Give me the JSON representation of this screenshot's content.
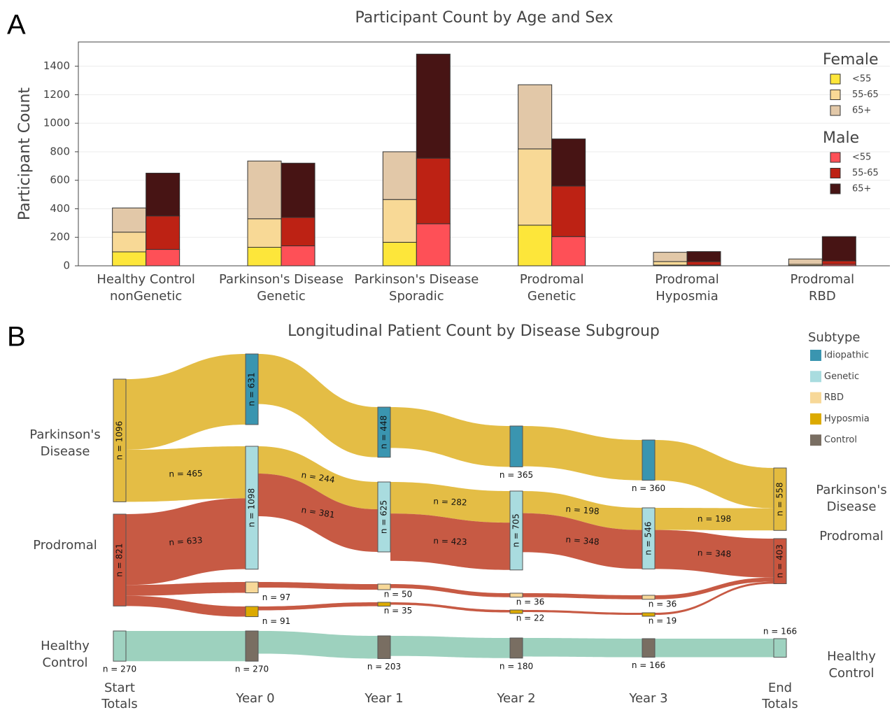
{
  "chart_data": [
    {
      "type": "bar",
      "panel": "A",
      "title": "Participant Count by Age and Sex",
      "ylabel": "Participant Count",
      "categories": [
        [
          "Healthy Control",
          "nonGenetic"
        ],
        [
          "Parkinson's Disease",
          "Genetic"
        ],
        [
          "Parkinson's Disease",
          "Sporadic"
        ],
        [
          "Prodromal",
          "Genetic"
        ],
        [
          "Prodromal",
          "Hyposmia"
        ],
        [
          "Prodromal",
          "RBD"
        ]
      ],
      "stacks": [
        {
          "name": "Female",
          "series": [
            {
              "name": "<55",
              "color": "#fde63a",
              "values": [
                98,
                130,
                165,
                285,
                5,
                2
              ]
            },
            {
              "name": "55-65",
              "color": "#f8d996",
              "values": [
                138,
                200,
                300,
                535,
                25,
                8
              ]
            },
            {
              "name": "65+",
              "color": "#e2c8a8",
              "values": [
                170,
                405,
                335,
                450,
                65,
                38
              ]
            }
          ]
        },
        {
          "name": "Male",
          "series": [
            {
              "name": "<55",
              "color": "#fe5057",
              "values": [
                115,
                140,
                295,
                205,
                5,
                10
              ]
            },
            {
              "name": "55-65",
              "color": "#bd2214",
              "values": [
                235,
                200,
                460,
                355,
                25,
                25
              ]
            },
            {
              "name": "65+",
              "color": "#471414",
              "values": [
                300,
                380,
                730,
                330,
                70,
                170
              ]
            }
          ]
        }
      ],
      "ylim": [
        0,
        1570
      ],
      "yticks": [
        0,
        200,
        400,
        600,
        800,
        1000,
        1200,
        1400
      ],
      "grid": true
    },
    {
      "type": "sankey",
      "panel": "B",
      "title": "Longitudinal Patient Count by Disease Subgroup",
      "columns": [
        [
          "Start",
          "Totals"
        ],
        [
          "Year 0"
        ],
        [
          "Year 1"
        ],
        [
          "Year 2"
        ],
        [
          "Year 3"
        ],
        [
          "End",
          "Totals"
        ]
      ],
      "legend": {
        "title": "Subtype",
        "items": [
          {
            "name": "Idiopathic",
            "color": "#3a95b0"
          },
          {
            "name": "Genetic",
            "color": "#a9dcdf"
          },
          {
            "name": "RBD",
            "color": "#f7d898"
          },
          {
            "name": "Hyposmia",
            "color": "#dcaa00"
          },
          {
            "name": "Control",
            "color": "#796e62"
          }
        ]
      },
      "nodes": [
        {
          "column": 0,
          "name": [
            "Parkinson's",
            "Disease"
          ],
          "value": 1096,
          "label": "n = 1096",
          "color": "#e3bb3f"
        },
        {
          "column": 0,
          "name": [
            "Prodromal"
          ],
          "value": 821,
          "label": "n = 821",
          "color": "#c9553e"
        },
        {
          "column": 0,
          "name": [
            "Healthy",
            "Control"
          ],
          "value": 270,
          "label": "n = 270",
          "color": "#9ed2c0"
        },
        {
          "column": 1,
          "value": 631,
          "label": "n = 631",
          "color": "#3a95b0"
        },
        {
          "column": 1,
          "value": 1098,
          "label": "n = 1098",
          "color": "#a9dcdf"
        },
        {
          "column": 1,
          "value": 97,
          "label": "n = 97",
          "color": "#f7d898"
        },
        {
          "column": 1,
          "value": 91,
          "label": "n = 91",
          "color": "#dcaa00"
        },
        {
          "column": 1,
          "value": 270,
          "label": "n = 270",
          "color": "#796e62"
        },
        {
          "column": 2,
          "value": 448,
          "label": "n = 448",
          "color": "#3a95b0"
        },
        {
          "column": 2,
          "value": 625,
          "label": "n = 625",
          "color": "#a9dcdf"
        },
        {
          "column": 2,
          "value": 50,
          "label": "n = 50",
          "color": "#f7d898"
        },
        {
          "column": 2,
          "value": 35,
          "label": "n = 35",
          "color": "#dcaa00"
        },
        {
          "column": 2,
          "value": 203,
          "label": "n = 203",
          "color": "#796e62"
        },
        {
          "column": 3,
          "value": 365,
          "label": "n = 365",
          "color": "#3a95b0"
        },
        {
          "column": 3,
          "value": 705,
          "label": "n = 705",
          "color": "#a9dcdf"
        },
        {
          "column": 3,
          "value": 36,
          "label": "n = 36",
          "color": "#f7d898"
        },
        {
          "column": 3,
          "value": 22,
          "label": "n = 22",
          "color": "#dcaa00"
        },
        {
          "column": 3,
          "value": 180,
          "label": "n = 180",
          "color": "#796e62"
        },
        {
          "column": 4,
          "value": 360,
          "label": "n = 360",
          "color": "#3a95b0"
        },
        {
          "column": 4,
          "value": 546,
          "label": "n = 546",
          "color": "#a9dcdf"
        },
        {
          "column": 4,
          "value": 36,
          "label": "n = 36",
          "color": "#f7d898"
        },
        {
          "column": 4,
          "value": 19,
          "label": "n = 19",
          "color": "#dcaa00"
        },
        {
          "column": 4,
          "value": 166,
          "label": "n = 166",
          "color": "#796e62"
        },
        {
          "column": 5,
          "name": [
            "Parkinson's",
            "Disease"
          ],
          "value": 558,
          "label": "n = 558",
          "color": "#e3bb3f"
        },
        {
          "column": 5,
          "name": [
            "Prodromal"
          ],
          "value": 403,
          "label": "n = 403",
          "color": "#c9553e"
        },
        {
          "column": 5,
          "name": [
            "Healthy",
            "Control"
          ],
          "value": 166,
          "label": "n = 166",
          "color": "#9ed2c0"
        }
      ],
      "links": [
        {
          "source": 0,
          "target": 3,
          "value": 631,
          "color": "#e3bb3f"
        },
        {
          "source": 0,
          "target": 4,
          "value": 465,
          "label": "n = 465",
          "color": "#e3bb3f"
        },
        {
          "source": 1,
          "target": 4,
          "value": 633,
          "label": "n = 633",
          "color": "#c5553e"
        },
        {
          "source": 1,
          "target": 5,
          "value": 97,
          "color": "#c5553e"
        },
        {
          "source": 1,
          "target": 6,
          "value": 91,
          "color": "#c5553e"
        },
        {
          "source": 2,
          "target": 7,
          "value": 270,
          "color": "#9ad0bc"
        },
        {
          "source": 3,
          "target": 8,
          "value": 448,
          "color": "#e3bb3f"
        },
        {
          "source": 4,
          "target": 9,
          "value": 244,
          "label": "n = 244",
          "color": "#e3bb3f"
        },
        {
          "source": 4,
          "target": 9,
          "value": 381,
          "label": "n = 381",
          "color": "#c5553e"
        },
        {
          "source": 5,
          "target": 10,
          "value": 50,
          "color": "#c5553e"
        },
        {
          "source": 6,
          "target": 11,
          "value": 35,
          "color": "#c5553e"
        },
        {
          "source": 7,
          "target": 12,
          "value": 203,
          "color": "#9ad0bc"
        },
        {
          "source": 8,
          "target": 13,
          "value": 365,
          "color": "#e3bb3f"
        },
        {
          "source": 9,
          "target": 14,
          "value": 282,
          "label": "n = 282",
          "color": "#e3bb3f"
        },
        {
          "source": 9,
          "target": 14,
          "value": 423,
          "label": "n = 423",
          "color": "#c5553e"
        },
        {
          "source": 10,
          "target": 15,
          "value": 36,
          "color": "#c5553e"
        },
        {
          "source": 11,
          "target": 16,
          "value": 22,
          "color": "#c5553e"
        },
        {
          "source": 12,
          "target": 17,
          "value": 180,
          "color": "#9ad0bc"
        },
        {
          "source": 13,
          "target": 18,
          "value": 360,
          "color": "#e3bb3f"
        },
        {
          "source": 14,
          "target": 19,
          "value": 198,
          "label": "n = 198",
          "color": "#e3bb3f"
        },
        {
          "source": 14,
          "target": 19,
          "value": 348,
          "label": "n = 348",
          "color": "#c5553e"
        },
        {
          "source": 15,
          "target": 20,
          "value": 36,
          "color": "#c5553e"
        },
        {
          "source": 16,
          "target": 21,
          "value": 19,
          "color": "#c5553e"
        },
        {
          "source": 17,
          "target": 22,
          "value": 166,
          "color": "#9ad0bc"
        },
        {
          "source": 18,
          "target": 23,
          "value": 360,
          "color": "#e3bb3f"
        },
        {
          "source": 19,
          "target": 23,
          "value": 198,
          "label": "n = 198",
          "color": "#e3bb3f"
        },
        {
          "source": 19,
          "target": 24,
          "value": 348,
          "label": "n = 348",
          "color": "#c5553e"
        },
        {
          "source": 20,
          "target": 24,
          "value": 36,
          "color": "#c5553e"
        },
        {
          "source": 21,
          "target": 24,
          "value": 19,
          "color": "#c5553e"
        },
        {
          "source": 22,
          "target": 25,
          "value": 166,
          "color": "#9ad0bc"
        }
      ]
    }
  ]
}
